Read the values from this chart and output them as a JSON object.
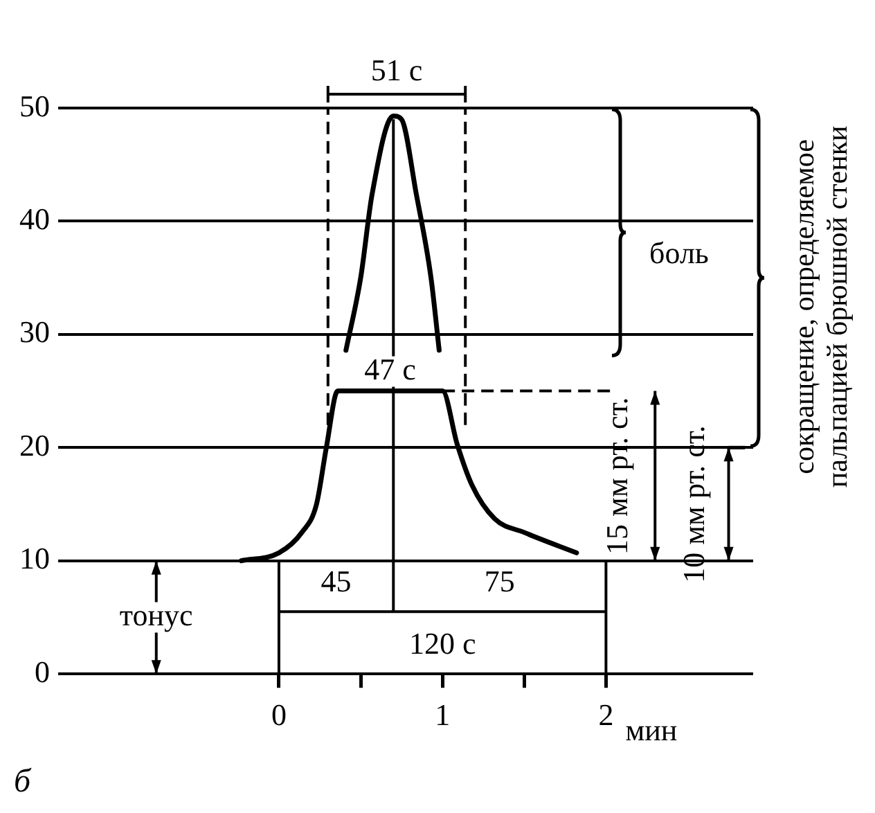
{
  "chart_data": {
    "type": "line",
    "xlabel": "мин",
    "xlim": [
      -1.35,
      2.9
    ],
    "xticks": [
      0,
      {
        "value": 0.5,
        "label": null
      },
      1,
      {
        "value": 1.5,
        "label": null
      },
      2
    ],
    "ylim": [
      0,
      50
    ],
    "yticks": [
      0,
      10,
      20,
      30,
      40,
      50
    ],
    "grid": "y",
    "marker": "none",
    "line_style": "solid",
    "legend": false,
    "series": [
      {
        "color": "#000000",
        "x": [
          -0.23,
          0,
          0.14,
          0.23,
          0.29,
          0.36,
          1.0,
          1.09,
          1.18,
          1.32,
          1.5,
          1.82
        ],
        "values": [
          10,
          10.7,
          12.5,
          15,
          20,
          25,
          25,
          20.3,
          16.7,
          13.7,
          12.5,
          10.7
        ]
      },
      {
        "color": "#000000",
        "x": [
          0.41,
          0.5,
          0.57,
          0.7,
          0.75,
          0.84,
          0.93,
          0.98
        ],
        "values": [
          28.6,
          35,
          42.4,
          49.3,
          49,
          42.4,
          35,
          28.6
        ]
      }
    ],
    "ref_lines": [
      {
        "axis": "x",
        "value": 0.3,
        "color": "#000000",
        "line_style": "dashed"
      },
      {
        "axis": "x",
        "value": 1.14,
        "color": "#000000",
        "line_style": "dashed"
      },
      {
        "axis": "y",
        "value": 25,
        "color": "#000000",
        "line_style": "dashed"
      },
      {
        "axis": "x",
        "value": 0.7,
        "color": "#000000",
        "line_style": "solid"
      },
      {
        "axis": "y",
        "value": 5.5,
        "color": "#000000",
        "line_style": "solid"
      },
      {
        "axis": "x",
        "value": 0,
        "color": "#000000",
        "line_style": "solid"
      },
      {
        "axis": "x",
        "value": 2,
        "color": "#000000",
        "line_style": "solid"
      }
    ],
    "annotations": [
      "51 с",
      "47 с",
      "45",
      "75",
      "120 с",
      "тонус",
      "боль",
      "15 мм рт. ст.",
      "10 мм рт. ст.",
      "сокращение, определяемое\nпальпацией брюшной стенки",
      "б"
    ]
  }
}
